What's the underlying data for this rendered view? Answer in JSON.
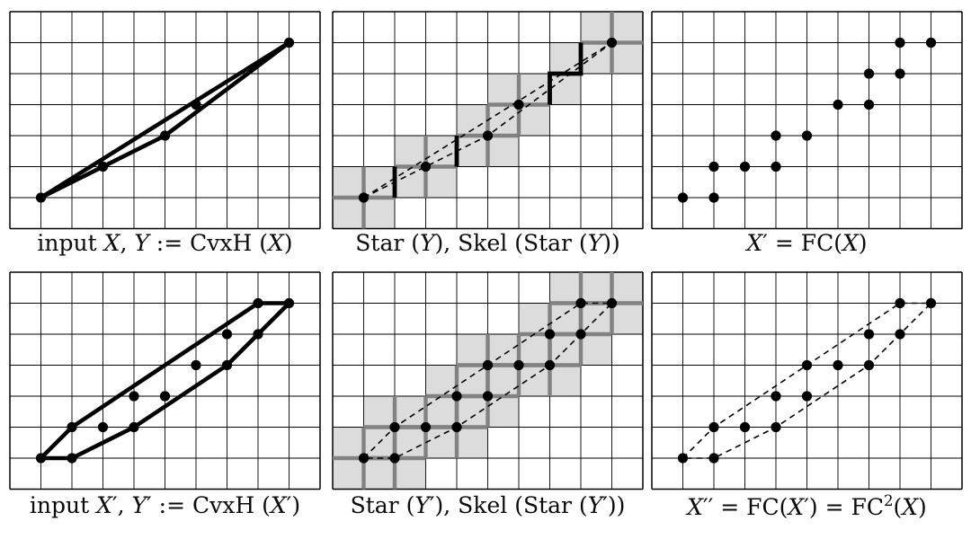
{
  "style": {
    "background": "#ffffff",
    "shade": "#dcdcdc",
    "gray": "#828282",
    "black": "#000000"
  },
  "figure": {
    "panels": {
      "p1": {
        "grid": {
          "cols": 10,
          "rows": 7
        },
        "points": [
          [
            1,
            1
          ],
          [
            3,
            2
          ],
          [
            5,
            3
          ],
          [
            6,
            4
          ],
          [
            9,
            6
          ]
        ],
        "solid_paths": [
          [
            [
              1,
              1
            ],
            [
              9,
              6
            ]
          ],
          [
            [
              1,
              1
            ],
            [
              5,
              3
            ],
            [
              9,
              6
            ]
          ]
        ]
      },
      "p2": {
        "grid": {
          "cols": 10,
          "rows": 7
        },
        "shaded": [
          [
            0,
            0
          ],
          [
            1,
            0
          ],
          [
            0,
            1
          ],
          [
            1,
            1
          ],
          [
            2,
            1
          ],
          [
            3,
            1
          ],
          [
            2,
            2
          ],
          [
            3,
            2
          ],
          [
            4,
            2
          ],
          [
            5,
            2
          ],
          [
            4,
            3
          ],
          [
            5,
            3
          ],
          [
            6,
            3
          ],
          [
            5,
            4
          ],
          [
            6,
            4
          ],
          [
            7,
            4
          ],
          [
            7,
            5
          ],
          [
            8,
            5
          ],
          [
            9,
            5
          ],
          [
            8,
            6
          ],
          [
            9,
            6
          ]
        ],
        "gray_segments": [
          [
            0,
            1,
            2,
            1
          ],
          [
            1,
            0,
            1,
            2
          ],
          [
            2,
            2,
            4,
            2
          ],
          [
            3,
            1,
            3,
            3
          ],
          [
            4,
            3,
            6,
            3
          ],
          [
            5,
            2,
            5,
            4
          ],
          [
            5,
            4,
            7,
            4
          ],
          [
            6,
            3,
            6,
            5
          ],
          [
            8,
            6,
            10,
            6
          ],
          [
            9,
            5,
            9,
            7
          ]
        ],
        "black_paths": [
          [
            [
              2,
              1
            ],
            [
              2,
              2
            ]
          ],
          [
            [
              4,
              2
            ],
            [
              4,
              3
            ]
          ],
          [
            [
              7,
              4
            ],
            [
              7,
              5
            ],
            [
              8,
              5
            ],
            [
              8,
              6
            ]
          ]
        ],
        "dashed_paths": [
          [
            [
              1,
              1
            ],
            [
              9,
              6
            ]
          ],
          [
            [
              1,
              1
            ],
            [
              5,
              3
            ],
            [
              9,
              6
            ]
          ]
        ],
        "points": [
          [
            1,
            1
          ],
          [
            3,
            2
          ],
          [
            5,
            3
          ],
          [
            6,
            4
          ],
          [
            9,
            6
          ]
        ]
      },
      "p3": {
        "grid": {
          "cols": 10,
          "rows": 7
        },
        "points": [
          [
            1,
            1
          ],
          [
            2,
            1
          ],
          [
            2,
            2
          ],
          [
            3,
            2
          ],
          [
            4,
            2
          ],
          [
            4,
            3
          ],
          [
            5,
            3
          ],
          [
            6,
            4
          ],
          [
            7,
            4
          ],
          [
            7,
            5
          ],
          [
            8,
            5
          ],
          [
            8,
            6
          ],
          [
            9,
            6
          ]
        ]
      },
      "p4": {
        "grid": {
          "cols": 10,
          "rows": 7
        },
        "points": [
          [
            1,
            1
          ],
          [
            2,
            1
          ],
          [
            2,
            2
          ],
          [
            3,
            2
          ],
          [
            4,
            2
          ],
          [
            4,
            3
          ],
          [
            5,
            3
          ],
          [
            6,
            4
          ],
          [
            7,
            4
          ],
          [
            7,
            5
          ],
          [
            8,
            5
          ],
          [
            8,
            6
          ],
          [
            9,
            6
          ]
        ],
        "solid_paths": [
          [
            [
              1,
              1
            ],
            [
              2,
              2
            ],
            [
              8,
              6
            ],
            [
              9,
              6
            ],
            [
              7,
              4
            ],
            [
              4,
              2
            ],
            [
              2,
              1
            ],
            [
              1,
              1
            ]
          ]
        ]
      },
      "p5": {
        "grid": {
          "cols": 10,
          "rows": 7
        },
        "shaded": [
          [
            0,
            0
          ],
          [
            1,
            0
          ],
          [
            2,
            0
          ],
          [
            0,
            1
          ],
          [
            1,
            1
          ],
          [
            2,
            1
          ],
          [
            3,
            1
          ],
          [
            4,
            1
          ],
          [
            1,
            2
          ],
          [
            2,
            2
          ],
          [
            3,
            2
          ],
          [
            4,
            2
          ],
          [
            5,
            2
          ],
          [
            3,
            3
          ],
          [
            4,
            3
          ],
          [
            5,
            3
          ],
          [
            6,
            3
          ],
          [
            7,
            3
          ],
          [
            4,
            4
          ],
          [
            5,
            4
          ],
          [
            6,
            4
          ],
          [
            7,
            4
          ],
          [
            8,
            4
          ],
          [
            6,
            5
          ],
          [
            7,
            5
          ],
          [
            8,
            5
          ],
          [
            9,
            5
          ],
          [
            7,
            6
          ],
          [
            8,
            6
          ],
          [
            9,
            6
          ]
        ],
        "gray_segments": [
          [
            0,
            1,
            2,
            1
          ],
          [
            1,
            0,
            1,
            2
          ],
          [
            1,
            1,
            3,
            1
          ],
          [
            2,
            0,
            2,
            2
          ],
          [
            1,
            2,
            3,
            2
          ],
          [
            2,
            1,
            2,
            3
          ],
          [
            2,
            2,
            4,
            2
          ],
          [
            3,
            1,
            3,
            3
          ],
          [
            3,
            2,
            5,
            2
          ],
          [
            4,
            1,
            4,
            3
          ],
          [
            3,
            3,
            5,
            3
          ],
          [
            4,
            2,
            4,
            4
          ],
          [
            4,
            3,
            6,
            3
          ],
          [
            5,
            2,
            5,
            4
          ],
          [
            4,
            4,
            6,
            4
          ],
          [
            5,
            3,
            5,
            5
          ],
          [
            5,
            4,
            7,
            4
          ],
          [
            6,
            3,
            6,
            5
          ],
          [
            6,
            4,
            8,
            4
          ],
          [
            7,
            3,
            7,
            5
          ],
          [
            6,
            5,
            8,
            5
          ],
          [
            7,
            4,
            7,
            6
          ],
          [
            7,
            5,
            9,
            5
          ],
          [
            8,
            4,
            8,
            6
          ],
          [
            7,
            6,
            9,
            6
          ],
          [
            8,
            5,
            8,
            7
          ],
          [
            8,
            6,
            10,
            6
          ],
          [
            9,
            5,
            9,
            7
          ]
        ],
        "dashed_paths": [
          [
            [
              1,
              1
            ],
            [
              2,
              2
            ],
            [
              8,
              6
            ],
            [
              9,
              6
            ],
            [
              7,
              4
            ],
            [
              4,
              2
            ],
            [
              2,
              1
            ],
            [
              1,
              1
            ]
          ]
        ],
        "points": [
          [
            1,
            1
          ],
          [
            2,
            1
          ],
          [
            2,
            2
          ],
          [
            3,
            2
          ],
          [
            4,
            2
          ],
          [
            4,
            3
          ],
          [
            5,
            3
          ],
          [
            5,
            4
          ],
          [
            6,
            4
          ],
          [
            7,
            4
          ],
          [
            7,
            5
          ],
          [
            8,
            5
          ],
          [
            8,
            6
          ],
          [
            9,
            6
          ]
        ]
      },
      "p6": {
        "grid": {
          "cols": 10,
          "rows": 7
        },
        "dashed_paths": [
          [
            [
              1,
              1
            ],
            [
              2,
              2
            ],
            [
              8,
              6
            ],
            [
              9,
              6
            ],
            [
              7,
              4
            ],
            [
              4,
              2
            ],
            [
              2,
              1
            ],
            [
              1,
              1
            ]
          ]
        ],
        "points": [
          [
            1,
            1
          ],
          [
            2,
            1
          ],
          [
            2,
            2
          ],
          [
            3,
            2
          ],
          [
            4,
            2
          ],
          [
            4,
            3
          ],
          [
            5,
            3
          ],
          [
            5,
            4
          ],
          [
            6,
            4
          ],
          [
            7,
            4
          ],
          [
            7,
            5
          ],
          [
            8,
            5
          ],
          [
            8,
            6
          ],
          [
            9,
            6
          ]
        ]
      }
    },
    "captions": {
      "p1": [
        {
          "t": "input ",
          "s": "r"
        },
        {
          "t": "X",
          "s": "i"
        },
        {
          "t": ", ",
          "s": "r"
        },
        {
          "t": "Y",
          "s": "i"
        },
        {
          "t": " := CvxH (",
          "s": "r"
        },
        {
          "t": "X",
          "s": "i"
        },
        {
          "t": ")",
          "s": "r"
        }
      ],
      "p2": [
        {
          "t": "Star (",
          "s": "r"
        },
        {
          "t": "Y",
          "s": "i"
        },
        {
          "t": "), Skel (Star (",
          "s": "r"
        },
        {
          "t": "Y",
          "s": "i"
        },
        {
          "t": "))",
          "s": "r"
        }
      ],
      "p3": [
        {
          "t": "X",
          "s": "i"
        },
        {
          "t": "′ = FC(",
          "s": "r"
        },
        {
          "t": "X",
          "s": "i"
        },
        {
          "t": ")",
          "s": "r"
        }
      ],
      "p4": [
        {
          "t": "input ",
          "s": "r"
        },
        {
          "t": "X",
          "s": "i"
        },
        {
          "t": "′, ",
          "s": "r"
        },
        {
          "t": "Y",
          "s": "i"
        },
        {
          "t": "′ := CvxH (",
          "s": "r"
        },
        {
          "t": "X",
          "s": "i"
        },
        {
          "t": "′)",
          "s": "r"
        }
      ],
      "p5": [
        {
          "t": "Star (",
          "s": "r"
        },
        {
          "t": "Y",
          "s": "i"
        },
        {
          "t": "′), Skel (Star (",
          "s": "r"
        },
        {
          "t": "Y",
          "s": "i"
        },
        {
          "t": "′))",
          "s": "r"
        }
      ],
      "p6": [
        {
          "t": "X",
          "s": "i"
        },
        {
          "t": "′′ = FC(",
          "s": "r"
        },
        {
          "t": "X",
          "s": "i"
        },
        {
          "t": "′) = FC",
          "s": "r"
        },
        {
          "t": "2",
          "s": "sup"
        },
        {
          "t": "(",
          "s": "r"
        },
        {
          "t": "X",
          "s": "i"
        },
        {
          "t": ")",
          "s": "r"
        }
      ]
    }
  }
}
